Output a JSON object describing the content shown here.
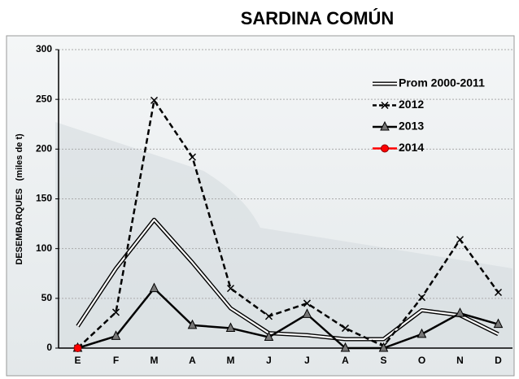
{
  "chart_data": {
    "type": "line",
    "title": "SARDINA COMÚN",
    "y_label": "DESEMBARQUES   (miles de t)",
    "categories": [
      "E",
      "F",
      "M",
      "A",
      "M",
      "J",
      "J",
      "A",
      "S",
      "O",
      "N",
      "D"
    ],
    "series": [
      {
        "name": "Prom 2000-2011",
        "color": "#000000",
        "line_style": "double",
        "marker": "none",
        "values": [
          22,
          80,
          129,
          86,
          40,
          15,
          13,
          9,
          9,
          38,
          33,
          14
        ]
      },
      {
        "name": "2012",
        "color": "#000000",
        "line_style": "dashed",
        "marker": "x",
        "values": [
          0,
          36,
          249,
          192,
          60,
          32,
          45,
          20,
          2,
          51,
          109,
          56
        ]
      },
      {
        "name": "2013",
        "color": "#000000",
        "line_style": "solid",
        "marker": "triangle",
        "values": [
          0,
          12,
          60,
          23,
          20,
          11,
          34,
          0,
          0,
          14,
          35,
          24
        ]
      },
      {
        "name": "2014",
        "color": "#ff0000",
        "line_style": "solid",
        "marker": "circle",
        "values": [
          0,
          null,
          null,
          null,
          null,
          null,
          null,
          null,
          null,
          null,
          null,
          null
        ]
      }
    ],
    "ylim": [
      0,
      300
    ],
    "yticks": [
      0,
      50,
      100,
      150,
      200,
      250,
      300
    ],
    "grid": true,
    "legend": "upper right"
  }
}
